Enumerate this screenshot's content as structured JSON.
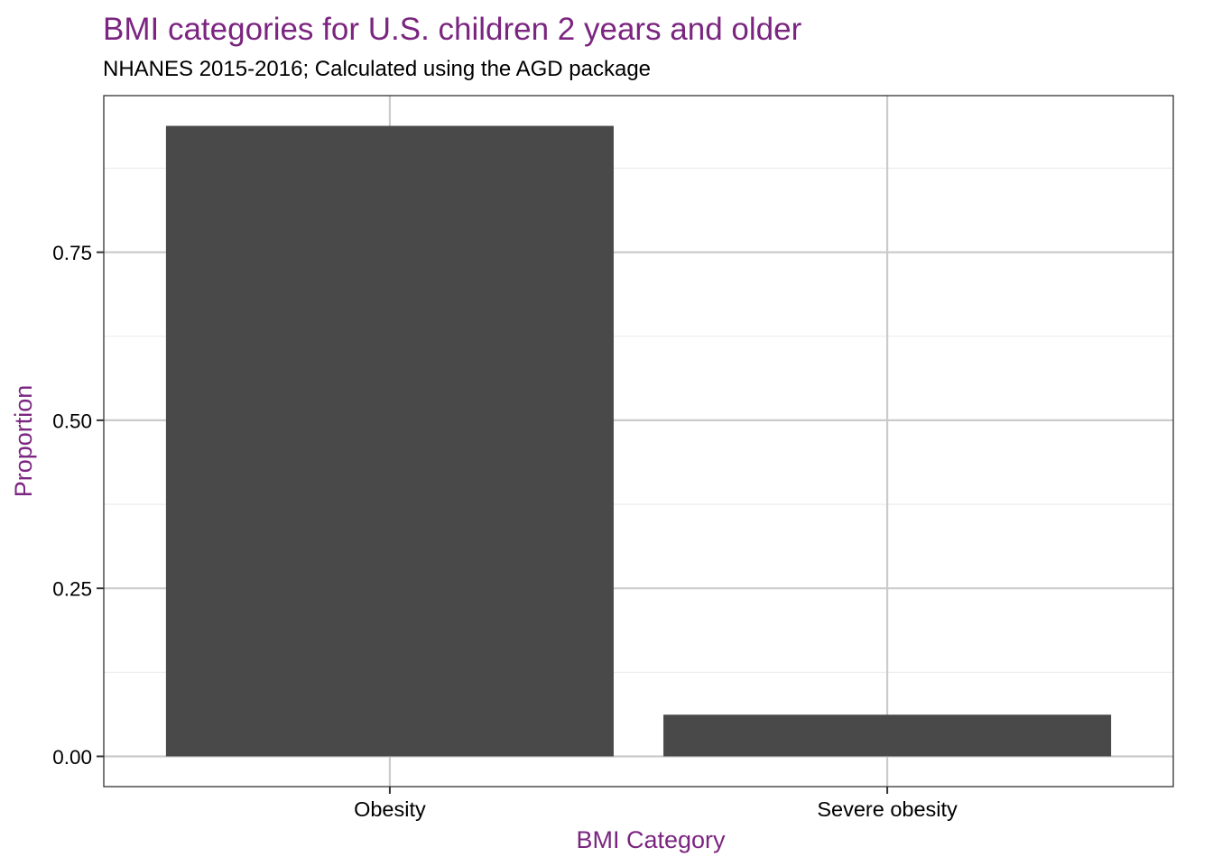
{
  "chart_data": {
    "type": "bar",
    "title": "BMI categories for U.S. children 2 years and older",
    "subtitle": "NHANES 2015-2016; Calculated using the AGD package",
    "xlabel": "BMI Category",
    "ylabel": "Proportion",
    "categories": [
      "Obesity",
      "Severe obesity"
    ],
    "values": [
      0.938,
      0.062
    ],
    "ylim": [
      -0.045,
      0.983
    ],
    "yticks": [
      0.0,
      0.25,
      0.5,
      0.75
    ],
    "ytick_labels": [
      "0.00",
      "0.25",
      "0.50",
      "0.75"
    ],
    "grid": true,
    "legend": "none",
    "colors": {
      "bar": "#494949",
      "title": "#7B2580",
      "axis_label": "#7B2580",
      "text": "#000000",
      "grid_major": "#cbcbcb",
      "grid_minor": "#ebebeb",
      "panel_border": "#333333"
    }
  }
}
